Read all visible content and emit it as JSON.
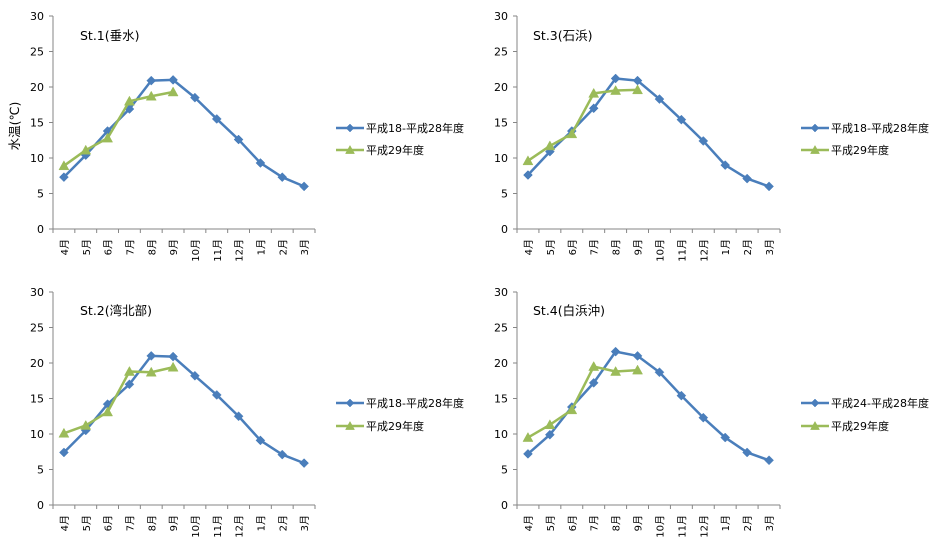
{
  "y_axis_label": "水温(℃)",
  "colors": {
    "baseline": "#4A7EBB",
    "current": "#9BBB59",
    "axis": "#868686"
  },
  "chart_data": [
    {
      "type": "line",
      "title": "St.1(垂水)",
      "ylabel": "水温(℃)",
      "ylim": [
        0,
        30
      ],
      "yticks": [
        0,
        5,
        10,
        15,
        20,
        25,
        30
      ],
      "categories": [
        "4月",
        "5月",
        "6月",
        "7月",
        "8月",
        "9月",
        "10月",
        "11月",
        "12月",
        "1月",
        "2月",
        "3月"
      ],
      "grid": false,
      "legend_position": "right",
      "series": [
        {
          "name": "平成18-平成28年度",
          "marker": "diamond",
          "values": [
            7.3,
            10.4,
            13.8,
            16.9,
            20.9,
            21.0,
            18.5,
            15.5,
            12.6,
            9.3,
            7.3,
            6.0
          ]
        },
        {
          "name": "平成29年度",
          "marker": "triangle",
          "values": [
            8.9,
            11.1,
            12.8,
            18.0,
            18.7,
            19.3,
            null,
            null,
            null,
            null,
            null,
            null
          ]
        }
      ]
    },
    {
      "type": "line",
      "title": "St.3(石浜)",
      "ylim": [
        0,
        30
      ],
      "yticks": [
        0,
        5,
        10,
        15,
        20,
        25,
        30
      ],
      "categories": [
        "4月",
        "5月",
        "6月",
        "7月",
        "8月",
        "9月",
        "10月",
        "11月",
        "12月",
        "1月",
        "2月",
        "3月"
      ],
      "grid": false,
      "legend_position": "right",
      "series": [
        {
          "name": "平成18-平成28年度",
          "marker": "diamond",
          "values": [
            7.6,
            10.9,
            13.8,
            17.0,
            21.2,
            20.9,
            18.3,
            15.4,
            12.4,
            9.0,
            7.1,
            6.0
          ]
        },
        {
          "name": "平成29年度",
          "marker": "triangle",
          "values": [
            9.6,
            11.7,
            13.4,
            19.1,
            19.5,
            19.6,
            null,
            null,
            null,
            null,
            null,
            null
          ]
        }
      ]
    },
    {
      "type": "line",
      "title": "St.2(湾北部)",
      "ylim": [
        0,
        30
      ],
      "yticks": [
        0,
        5,
        10,
        15,
        20,
        25,
        30
      ],
      "categories": [
        "4月",
        "5月",
        "6月",
        "7月",
        "8月",
        "9月",
        "10月",
        "11月",
        "12月",
        "1月",
        "2月",
        "3月"
      ],
      "grid": false,
      "legend_position": "right",
      "series": [
        {
          "name": "平成18-平成28年度",
          "marker": "diamond",
          "values": [
            7.4,
            10.5,
            14.2,
            17.0,
            21.0,
            20.9,
            18.2,
            15.5,
            12.5,
            9.1,
            7.1,
            5.9
          ]
        },
        {
          "name": "平成29年度",
          "marker": "triangle",
          "values": [
            10.1,
            11.2,
            13.1,
            18.8,
            18.7,
            19.4,
            null,
            null,
            null,
            null,
            null,
            null
          ]
        }
      ]
    },
    {
      "type": "line",
      "title": "St.4(白浜沖)",
      "ylim": [
        0,
        30
      ],
      "yticks": [
        0,
        5,
        10,
        15,
        20,
        25,
        30
      ],
      "categories": [
        "4月",
        "5月",
        "6月",
        "7月",
        "8月",
        "9月",
        "10月",
        "11月",
        "12月",
        "1月",
        "2月",
        "3月"
      ],
      "grid": false,
      "legend_position": "right",
      "series": [
        {
          "name": "平成24-平成28年度",
          "marker": "diamond",
          "values": [
            7.2,
            9.9,
            13.8,
            17.2,
            21.6,
            21.0,
            18.7,
            15.4,
            12.3,
            9.5,
            7.4,
            6.3
          ]
        },
        {
          "name": "平成29年度",
          "marker": "triangle",
          "values": [
            9.5,
            11.3,
            13.4,
            19.5,
            18.8,
            19.0,
            null,
            null,
            null,
            null,
            null,
            null
          ]
        }
      ]
    }
  ]
}
